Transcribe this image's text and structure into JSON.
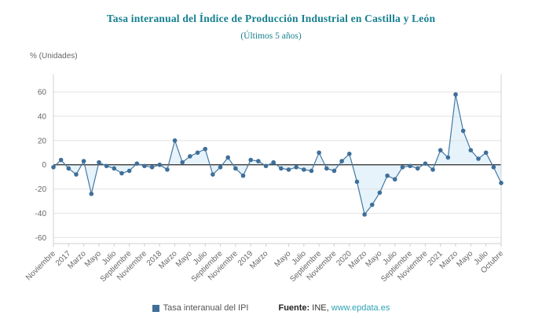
{
  "header": {
    "title": "Tasa interanual del Índice de Producción Industrial en Castilla y León",
    "subtitle": "(Últimos 5 años)",
    "unit_label": "% (Unidades)"
  },
  "legend": {
    "series_label": "Tasa interanual del IPI",
    "source_prefix": "Fuente:",
    "source_text": "INE,",
    "source_link": "www.epdata.es"
  },
  "colors": {
    "title": "#16808f",
    "line": "#4478a3",
    "marker": "#3f6f99",
    "area_fill": "#d9ecf7",
    "zero_line": "#3c3c3c",
    "grid": "#e2e2e2",
    "axis_border": "#d0d0d0",
    "axis_text": "#666666",
    "link": "#2fa3b6",
    "source_text_color": "#333333"
  },
  "chart_data": {
    "type": "line",
    "title": "Tasa interanual del Índice de Producción Industrial en Castilla y León",
    "subtitle": "(Últimos 5 años)",
    "ylabel": "% (Unidades)",
    "ylim": [
      -60,
      60
    ],
    "grid": true,
    "legend_position": "bottom",
    "y_tick_labels": [
      60,
      40,
      20,
      0,
      -20,
      -40,
      -60
    ],
    "x_tick_labels": [
      "Noviembre",
      "2017",
      "Marzo",
      "Mayo",
      "Julio",
      "Septiembre",
      "Noviembre",
      "2018",
      "Marzo",
      "Mayo",
      "Julio",
      "Septiembre",
      "Noviembre",
      "2019",
      "Marzo",
      "Mayo",
      "Julio",
      "Septiembre",
      "Noviembre",
      "2020",
      "Marzo",
      "Mayo",
      "Julio",
      "Septiembre",
      "Noviembre",
      "2021",
      "Marzo",
      "Mayo",
      "Julio",
      "Octubre"
    ],
    "series": [
      {
        "name": "Tasa interanual del IPI",
        "values": [
          -2,
          4,
          -3,
          -8,
          3,
          -24,
          2,
          -1,
          -3,
          -7,
          -5,
          1,
          -1,
          -2,
          0,
          -4,
          20,
          2,
          7,
          10,
          13,
          -8,
          -2,
          6,
          -3,
          -9,
          4,
          3,
          -1,
          2,
          -3,
          -4,
          -2,
          -4,
          -5,
          10,
          -3,
          -5,
          3,
          9,
          -14,
          -41,
          -33,
          -23,
          -9,
          -12,
          -2,
          -1,
          -3,
          1,
          -4,
          12,
          6,
          58,
          28,
          12,
          5,
          10,
          -2,
          -15
        ]
      }
    ]
  }
}
